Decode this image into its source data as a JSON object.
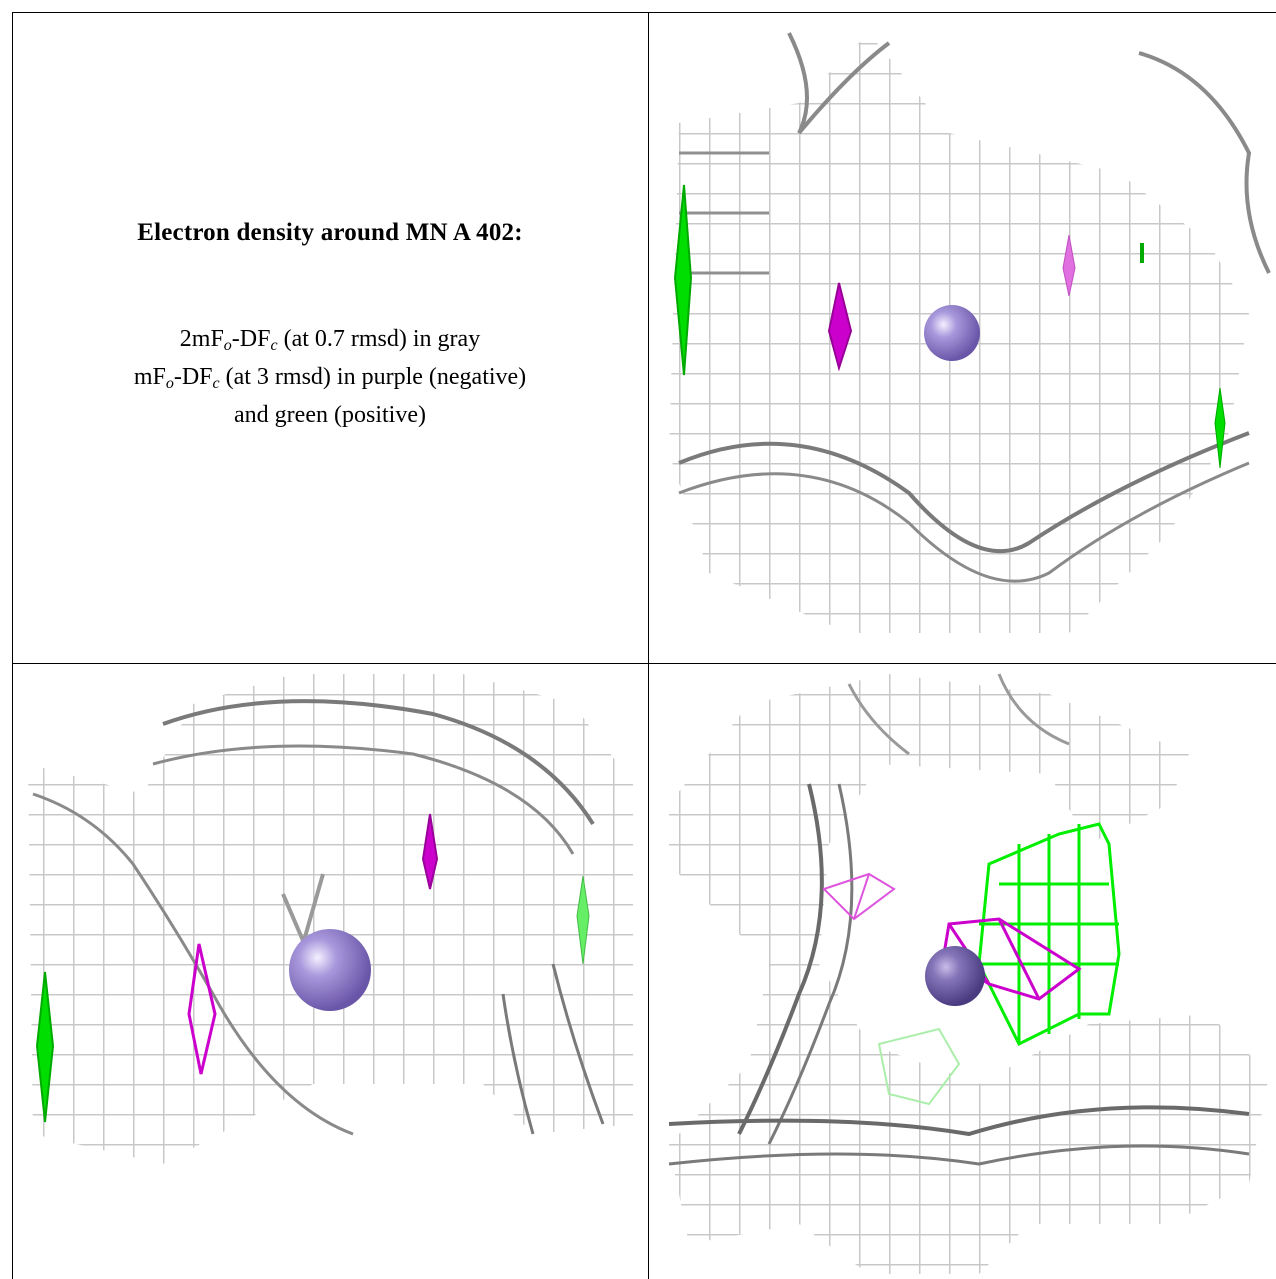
{
  "caption": {
    "title": "Electron density around MN A 402:",
    "line1": {
      "prefix": "2mF",
      "sub1": "o",
      "mid": "-DF",
      "sub2": "c",
      "suffix": " (at 0.7 rmsd) in gray"
    },
    "line2": {
      "prefix": "mF",
      "sub1": "o",
      "mid": "-DF",
      "sub2": "c",
      "suffix": " (at 3 rmsd) in purple (negative)"
    },
    "line3": "and green (positive)"
  },
  "colors": {
    "mesh_gray": "#b4b4b4",
    "mesh_dark": "#5a5a5a",
    "negative_purple": "#cc00cc",
    "positive_green": "#00dd00",
    "ion_sphere": "#9a86d0"
  },
  "panels": [
    {
      "view": "top-right"
    },
    {
      "view": "bottom-left"
    },
    {
      "view": "bottom-right"
    }
  ]
}
